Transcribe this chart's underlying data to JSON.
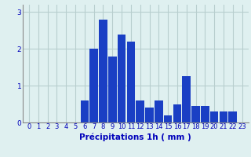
{
  "categories": [
    0,
    1,
    2,
    3,
    4,
    5,
    6,
    7,
    8,
    9,
    10,
    11,
    12,
    13,
    14,
    15,
    16,
    17,
    18,
    19,
    20,
    21,
    22,
    23
  ],
  "values": [
    0,
    0,
    0,
    0,
    0,
    0,
    0.6,
    2.0,
    2.8,
    1.8,
    2.4,
    2.2,
    0.6,
    0.4,
    0.6,
    0.2,
    0.5,
    1.25,
    0.45,
    0.45,
    0.3,
    0.3,
    0.3,
    0
  ],
  "bar_color": "#1a3fc4",
  "background_color": "#dff0f0",
  "grid_color": "#b8cece",
  "xlabel": "Précipitations 1h ( mm )",
  "ylim": [
    0,
    3.2
  ],
  "yticks": [
    0,
    1,
    2,
    3
  ],
  "label_color": "#0000bb",
  "tick_label_fontsize": 6.0,
  "xlabel_fontsize": 7.5,
  "bar_width": 0.9
}
